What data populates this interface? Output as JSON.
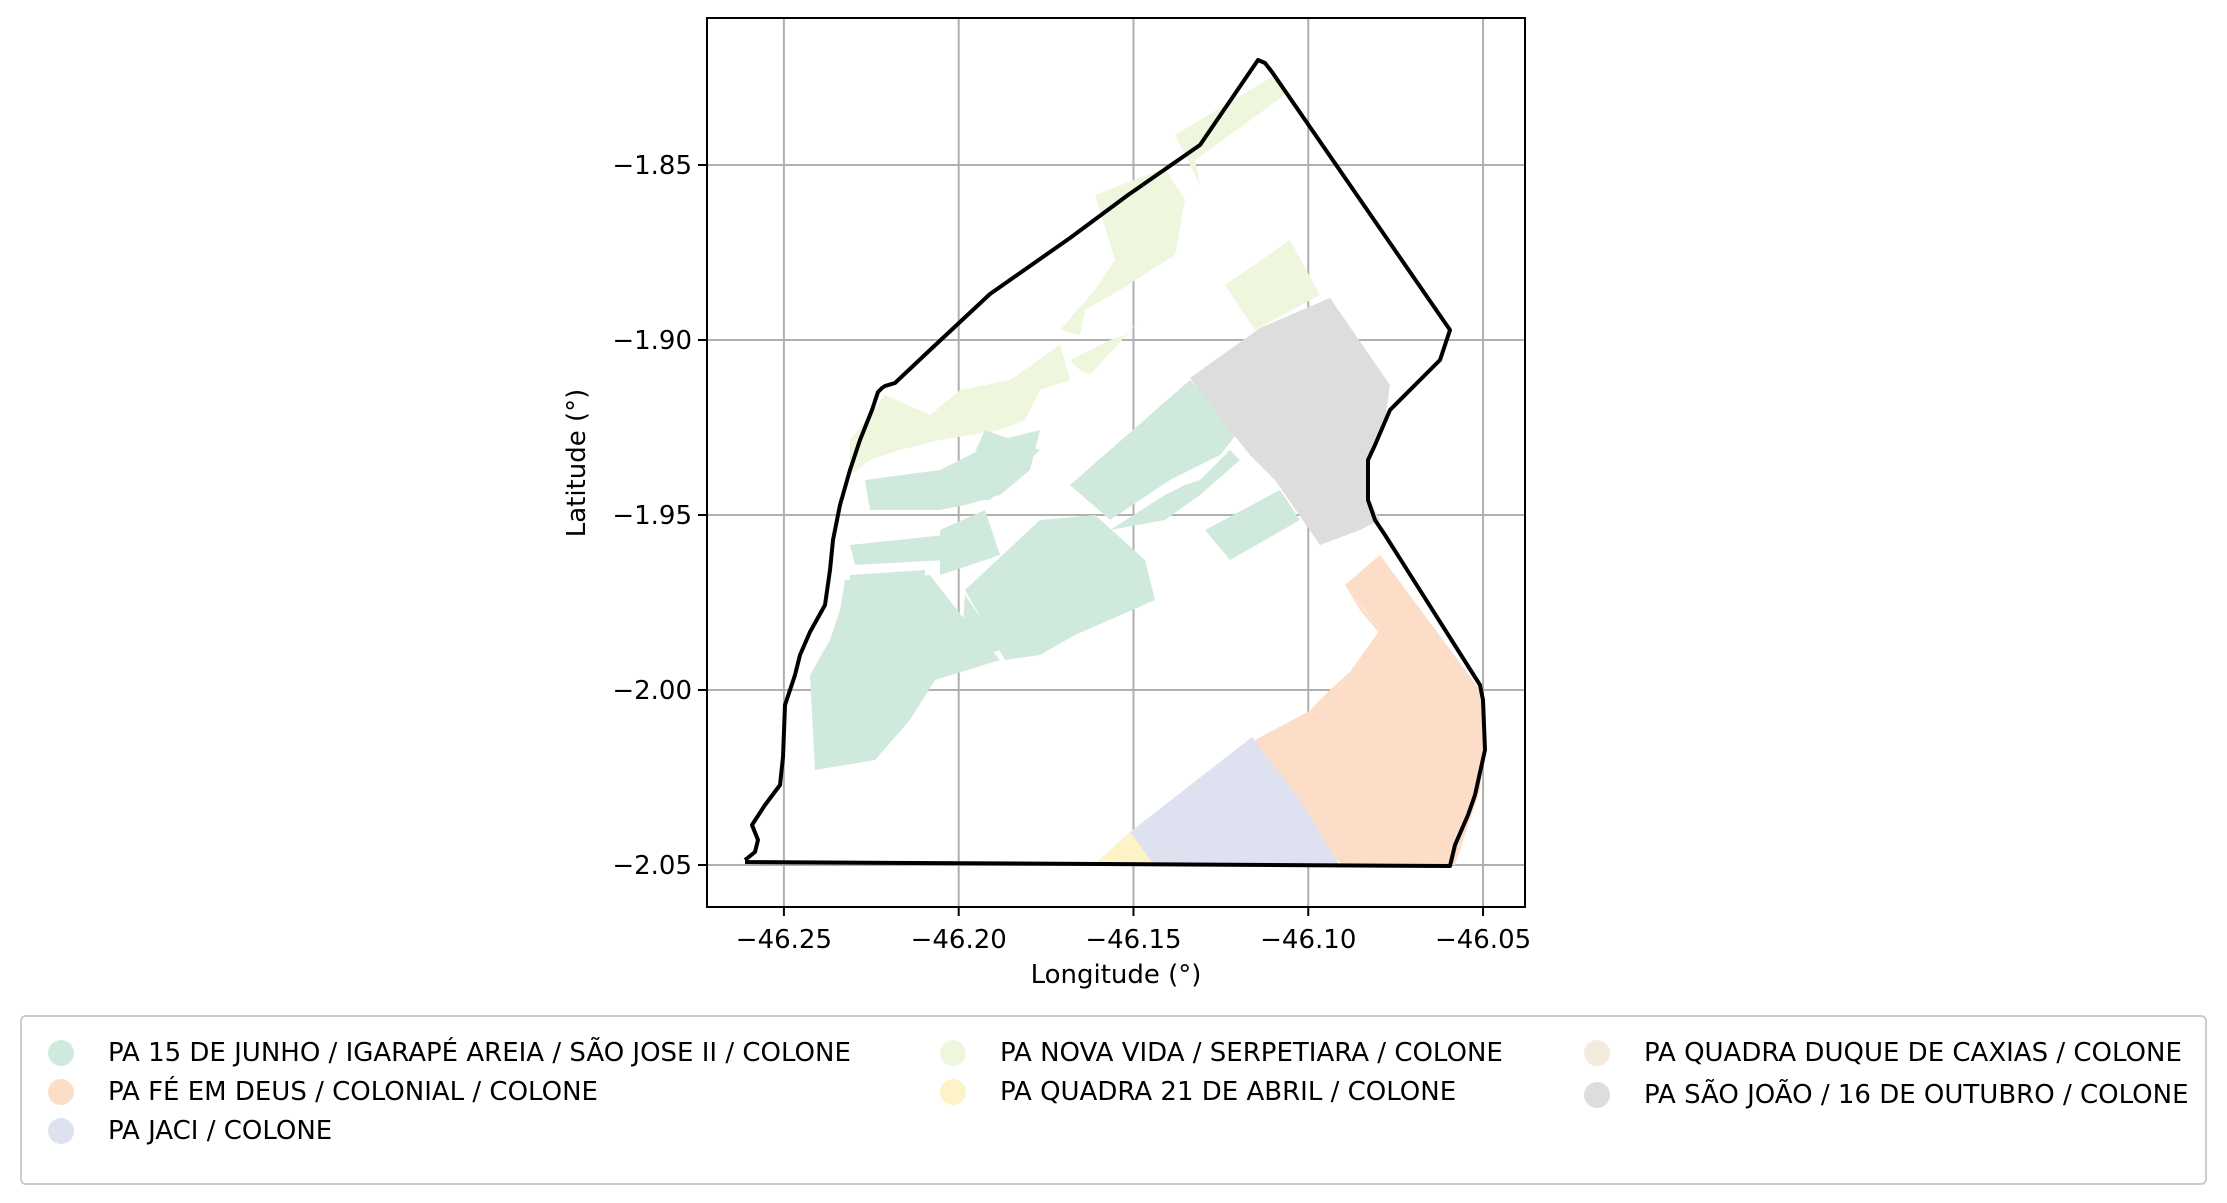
{
  "map": {
    "xlabel": "Longitude (°)",
    "ylabel": "Latitude (°)",
    "x_ticks": [
      "−46.25",
      "−46.20",
      "−46.15",
      "−46.10",
      "−46.05"
    ],
    "y_ticks": [
      "−1.85",
      "−1.90",
      "−1.95",
      "−2.00",
      "−2.05"
    ],
    "x_tick_values": [
      -46.25,
      -46.2,
      -46.15,
      -46.1,
      -46.05
    ],
    "y_tick_values": [
      -1.85,
      -1.9,
      -1.95,
      -2.0,
      -2.05
    ],
    "xlim": [
      -46.272,
      -46.038
    ],
    "ylim": [
      -2.062,
      -1.808
    ],
    "grid": true,
    "boundary_color": "#000000"
  },
  "legend": {
    "placement": "bottom",
    "items": [
      {
        "label": "PA 15 DE JUNHO / IGARAPÉ AREIA / SÃO JOSE II / COLONE",
        "color": "#cfeadd"
      },
      {
        "label": "PA FÉ EM DEUS / COLONIAL / COLONE",
        "color": "#fcdec8"
      },
      {
        "label": "PA JACI / COLONE",
        "color": "#dee2f0"
      },
      {
        "label": "PA NOVA VIDA / SERPETIARA / COLONE",
        "color": "#eef7dd"
      },
      {
        "label": "PA QUADRA 21 DE ABRIL / COLONE",
        "color": "#fef3c6"
      },
      {
        "label": "PA QUADRA DUQUE DE CAXIAS / COLONE",
        "color": "#f4ebdf"
      },
      {
        "label": "PA SÃO JOÃO / 16 DE OUTUBRO / COLONE",
        "color": "#dddddd"
      }
    ]
  }
}
